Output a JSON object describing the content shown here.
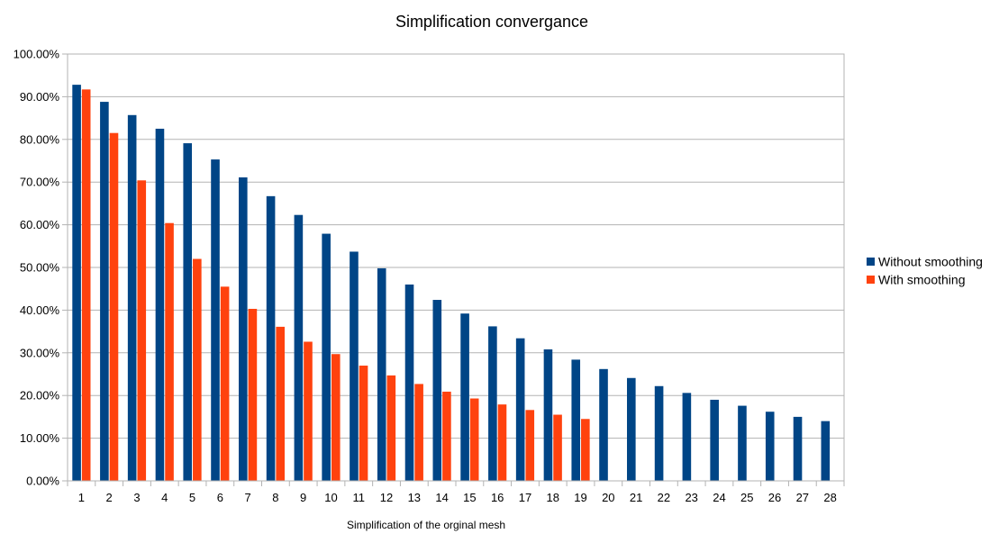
{
  "chart_data": {
    "type": "bar",
    "title": "Simplification convergance",
    "xlabel": "Simplification of the orginal mesh",
    "ylabel": "",
    "ylim": [
      0,
      1
    ],
    "yticks": [
      "0.00%",
      "10.00%",
      "20.00%",
      "30.00%",
      "40.00%",
      "50.00%",
      "60.00%",
      "70.00%",
      "80.00%",
      "90.00%",
      "100.00%"
    ],
    "grid": true,
    "legend_position": "right",
    "categories": [
      "1",
      "2",
      "3",
      "4",
      "5",
      "6",
      "7",
      "8",
      "9",
      "10",
      "11",
      "12",
      "13",
      "14",
      "15",
      "16",
      "17",
      "18",
      "19",
      "20",
      "21",
      "22",
      "23",
      "24",
      "25",
      "26",
      "27",
      "28"
    ],
    "series": [
      {
        "name": "Without smoothing",
        "color": "#004586",
        "values": [
          0.928,
          0.888,
          0.857,
          0.825,
          0.791,
          0.753,
          0.711,
          0.667,
          0.623,
          0.579,
          0.537,
          0.498,
          0.46,
          0.424,
          0.392,
          0.362,
          0.334,
          0.308,
          0.284,
          0.262,
          0.241,
          0.222,
          0.206,
          0.19,
          0.176,
          0.162,
          0.15,
          0.14
        ]
      },
      {
        "name": "With smoothing",
        "color": "#ff420e",
        "values": [
          0.917,
          0.815,
          0.704,
          0.604,
          0.52,
          0.455,
          0.403,
          0.361,
          0.326,
          0.297,
          0.27,
          0.247,
          0.227,
          0.209,
          0.193,
          0.179,
          0.166,
          0.155,
          0.145,
          null,
          null,
          null,
          null,
          null,
          null,
          null,
          null,
          null
        ]
      }
    ]
  }
}
